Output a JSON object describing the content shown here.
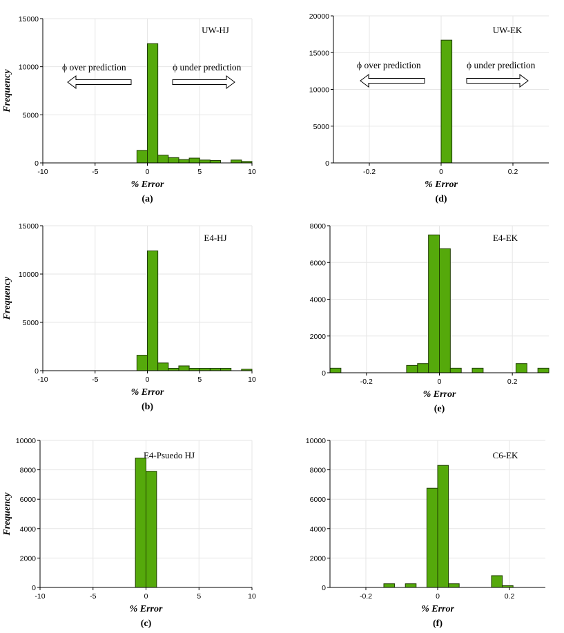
{
  "colors": {
    "bar": "#55a90b",
    "bar_edge": "#1f3d00",
    "grid": "#e6e6e6"
  },
  "chart_data": [
    {
      "id": "a",
      "type": "bar",
      "caption": "(a)",
      "label": "UW-HJ",
      "xlabel": "% Error",
      "ylabel": "Frequency",
      "xlim": [
        -10,
        10
      ],
      "ylim": [
        0,
        15000
      ],
      "xticks": [
        -10,
        -5,
        0,
        5,
        10
      ],
      "yticks": [
        0,
        5000,
        10000,
        15000
      ],
      "bins": [
        {
          "x0": -1,
          "x1": 0,
          "y": 1300
        },
        {
          "x0": 0,
          "x1": 1,
          "y": 12400
        },
        {
          "x0": 1,
          "x1": 2,
          "y": 800
        },
        {
          "x0": 2,
          "x1": 3,
          "y": 550
        },
        {
          "x0": 3,
          "x1": 4,
          "y": 350
        },
        {
          "x0": 4,
          "x1": 5,
          "y": 500
        },
        {
          "x0": 5,
          "x1": 6,
          "y": 300
        },
        {
          "x0": 6,
          "x1": 7,
          "y": 250
        },
        {
          "x0": 8,
          "x1": 9,
          "y": 300
        },
        {
          "x0": 9,
          "x1": 10,
          "y": 150
        }
      ],
      "annotations": {
        "left": "ϕ over prediction",
        "right": "ϕ under prediction"
      }
    },
    {
      "id": "b",
      "type": "bar",
      "caption": "(b)",
      "label": "E4-HJ",
      "xlabel": "% Error",
      "ylabel": "Frequency",
      "xlim": [
        -10,
        10
      ],
      "ylim": [
        0,
        15000
      ],
      "xticks": [
        -10,
        -5,
        0,
        5,
        10
      ],
      "yticks": [
        0,
        5000,
        10000,
        15000
      ],
      "bins": [
        {
          "x0": -1,
          "x1": 0,
          "y": 1600
        },
        {
          "x0": 0,
          "x1": 1,
          "y": 12400
        },
        {
          "x0": 1,
          "x1": 2,
          "y": 800
        },
        {
          "x0": 2,
          "x1": 3,
          "y": 250
        },
        {
          "x0": 3,
          "x1": 4,
          "y": 500
        },
        {
          "x0": 4,
          "x1": 5,
          "y": 250
        },
        {
          "x0": 5,
          "x1": 6,
          "y": 250
        },
        {
          "x0": 6,
          "x1": 7,
          "y": 250
        },
        {
          "x0": 7,
          "x1": 8,
          "y": 250
        },
        {
          "x0": 9,
          "x1": 10,
          "y": 150
        }
      ]
    },
    {
      "id": "c",
      "type": "bar",
      "caption": "(c)",
      "label": "E4-Psuedo HJ",
      "xlabel": "% Error",
      "ylabel": "Frequency",
      "xlim": [
        -10,
        10
      ],
      "ylim": [
        0,
        10000
      ],
      "xticks": [
        -10,
        -5,
        0,
        5,
        10
      ],
      "yticks": [
        0,
        2000,
        4000,
        6000,
        8000,
        10000
      ],
      "bins": [
        {
          "x0": -1,
          "x1": 0,
          "y": 8800
        },
        {
          "x0": 0,
          "x1": 1,
          "y": 7900
        }
      ]
    },
    {
      "id": "d",
      "type": "bar",
      "caption": "(d)",
      "label": "UW-EK",
      "xlabel": "% Error",
      "ylabel": "",
      "xlim": [
        -0.3,
        0.3
      ],
      "ylim": [
        0,
        20000
      ],
      "xticks": [
        -0.2,
        0,
        0.2
      ],
      "yticks": [
        0,
        5000,
        10000,
        15000,
        20000
      ],
      "bins": [
        {
          "x0": 0,
          "x1": 0.03,
          "y": 16700
        }
      ],
      "annotations": {
        "left": "ϕ over prediction",
        "right": "ϕ under prediction"
      }
    },
    {
      "id": "e",
      "type": "bar",
      "caption": "(e)",
      "label": "E4-EK",
      "xlabel": "% Error",
      "ylabel": "",
      "xlim": [
        -0.3,
        0.3
      ],
      "ylim": [
        0,
        8000
      ],
      "xticks": [
        -0.2,
        0,
        0.2
      ],
      "yticks": [
        0,
        2000,
        4000,
        6000,
        8000
      ],
      "bins": [
        {
          "x0": -0.3,
          "x1": -0.27,
          "y": 250
        },
        {
          "x0": -0.09,
          "x1": -0.06,
          "y": 400
        },
        {
          "x0": -0.06,
          "x1": -0.03,
          "y": 500
        },
        {
          "x0": -0.03,
          "x1": 0,
          "y": 7500
        },
        {
          "x0": 0,
          "x1": 0.03,
          "y": 6750
        },
        {
          "x0": 0.03,
          "x1": 0.06,
          "y": 250
        },
        {
          "x0": 0.09,
          "x1": 0.12,
          "y": 250
        },
        {
          "x0": 0.21,
          "x1": 0.24,
          "y": 500
        },
        {
          "x0": 0.27,
          "x1": 0.3,
          "y": 250
        }
      ]
    },
    {
      "id": "f",
      "type": "bar",
      "caption": "(f)",
      "label": "C6-EK",
      "xlabel": "% Error",
      "ylabel": "",
      "xlim": [
        -0.3,
        0.3
      ],
      "ylim": [
        0,
        10000
      ],
      "xticks": [
        -0.2,
        0,
        0.2
      ],
      "yticks": [
        0,
        2000,
        4000,
        6000,
        8000,
        10000
      ],
      "bins": [
        {
          "x0": -0.15,
          "x1": -0.12,
          "y": 250
        },
        {
          "x0": -0.09,
          "x1": -0.06,
          "y": 250
        },
        {
          "x0": -0.03,
          "x1": 0,
          "y": 6750
        },
        {
          "x0": 0,
          "x1": 0.03,
          "y": 8300
        },
        {
          "x0": 0.03,
          "x1": 0.06,
          "y": 250
        },
        {
          "x0": 0.15,
          "x1": 0.18,
          "y": 800
        },
        {
          "x0": 0.18,
          "x1": 0.21,
          "y": 120
        }
      ]
    }
  ]
}
